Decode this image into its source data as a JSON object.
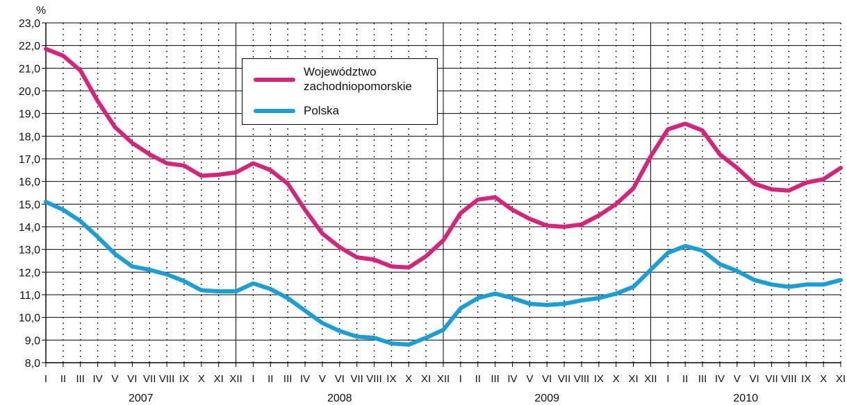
{
  "chart_data": {
    "type": "line",
    "ylabel": "%",
    "ylim": [
      8.0,
      23.0
    ],
    "yticks": [
      "8,0",
      "9,0",
      "10,0",
      "11,0",
      "12,0",
      "13,0",
      "14,0",
      "15,0",
      "16,0",
      "17,0",
      "18,0",
      "19,0",
      "20,0",
      "21,0",
      "22,0",
      "23,0"
    ],
    "month_labels": [
      "I",
      "II",
      "III",
      "IV",
      "V",
      "VI",
      "VII",
      "VIII",
      "IX",
      "X",
      "XI",
      "XII",
      "I",
      "II",
      "III",
      "IV",
      "V",
      "VI",
      "VII",
      "VIII",
      "IX",
      "X",
      "XI",
      "XII",
      "I",
      "II",
      "III",
      "IV",
      "V",
      "VI",
      "VII",
      "VIII",
      "IX",
      "X",
      "XI",
      "XII",
      "I",
      "II",
      "III",
      "IV",
      "V",
      "VI",
      "VII",
      "VIII",
      "IX",
      "X",
      "XI"
    ],
    "years": [
      "2007",
      "2008",
      "2009",
      "2010"
    ],
    "grid": "dotted vertical + solid horizontal",
    "legend_position": "upper-left inside plot",
    "series": [
      {
        "name": "Województwo zachodniopomorskie",
        "color": "#d6247b",
        "values": [
          21.85,
          21.55,
          20.9,
          19.55,
          18.4,
          17.7,
          17.2,
          16.8,
          16.7,
          16.25,
          16.3,
          16.4,
          16.8,
          16.5,
          15.9,
          14.75,
          13.7,
          13.1,
          12.65,
          12.55,
          12.25,
          12.2,
          12.7,
          13.4,
          14.6,
          15.2,
          15.3,
          14.75,
          14.35,
          14.05,
          14.0,
          14.1,
          14.5,
          15.0,
          15.7,
          17.1,
          18.3,
          18.55,
          18.25,
          17.2,
          16.6,
          15.9,
          15.65,
          15.6,
          15.95,
          16.1,
          16.6
        ]
      },
      {
        "name": "Polska",
        "color": "#1a9ed8",
        "values": [
          15.1,
          14.75,
          14.25,
          13.55,
          12.8,
          12.25,
          12.1,
          11.9,
          11.6,
          11.2,
          11.15,
          11.15,
          11.5,
          11.25,
          10.85,
          10.3,
          9.75,
          9.4,
          9.15,
          9.1,
          8.85,
          8.8,
          9.1,
          9.45,
          10.4,
          10.85,
          11.05,
          10.85,
          10.6,
          10.55,
          10.6,
          10.75,
          10.85,
          11.05,
          11.35,
          12.1,
          12.85,
          13.15,
          12.95,
          12.35,
          12.05,
          11.65,
          11.45,
          11.35,
          11.45,
          11.45,
          11.65
        ]
      }
    ]
  },
  "legend": {
    "items": [
      {
        "label_line1": "Województwo",
        "label_line2": "zachodniopomorskie"
      },
      {
        "label_line1": "Polska",
        "label_line2": ""
      }
    ]
  }
}
